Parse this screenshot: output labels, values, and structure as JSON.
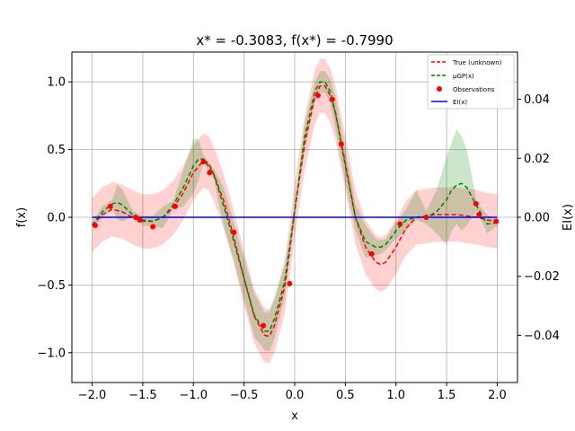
{
  "chart_data": {
    "type": "line",
    "title": "x* = -0.3083, f(x*) = -0.7990",
    "xlabel": "x",
    "ylabel": "f(x)",
    "ylabel_right": "EI(x)",
    "xlim": [
      -2.2,
      2.2
    ],
    "ylim": [
      -1.22,
      1.22
    ],
    "ylim_right": [
      -0.056,
      0.056
    ],
    "xticks": [
      -2.0,
      -1.5,
      -1.0,
      -0.5,
      0.0,
      0.5,
      1.0,
      1.5,
      2.0
    ],
    "xtick_labels": [
      "−2.0",
      "−1.5",
      "−1.0",
      "−0.5",
      "0.0",
      "0.5",
      "1.0",
      "1.5",
      "2.0"
    ],
    "yticks": [
      -1.0,
      -0.5,
      0.0,
      0.5,
      1.0
    ],
    "ytick_labels": [
      "−1.0",
      "−0.5",
      "0.0",
      "0.5",
      "1.0"
    ],
    "yticks_right": [
      -0.04,
      -0.02,
      0.0,
      0.02,
      0.04
    ],
    "ytick_right_labels": [
      "−0.04",
      "−0.02",
      "0.00",
      "0.02",
      "0.04"
    ],
    "grid": true,
    "legend_position": "top-right",
    "legend": [
      {
        "label": "True (unknown)",
        "color": "#ff0000",
        "style": "dashed"
      },
      {
        "label": "μGP(x)",
        "color": "#008000",
        "style": "dashed"
      },
      {
        "label": "Observations",
        "color": "#ff0000",
        "style": "dot"
      },
      {
        "label": "EI(x)",
        "color": "#0000ff",
        "style": "solid"
      }
    ],
    "series": [
      {
        "name": "True (unknown)",
        "color": "#ff0000",
        "x": [
          -2.0,
          -1.9,
          -1.8,
          -1.7,
          -1.6,
          -1.5,
          -1.4,
          -1.3,
          -1.2,
          -1.1,
          -1.0,
          -0.9,
          -0.85,
          -0.8,
          -0.7,
          -0.6,
          -0.5,
          -0.4,
          -0.3,
          -0.25,
          -0.2,
          -0.1,
          -0.05,
          0.0,
          0.1,
          0.2,
          0.25,
          0.3,
          0.35,
          0.4,
          0.5,
          0.6,
          0.7,
          0.8,
          0.85,
          0.9,
          1.0,
          1.1,
          1.2,
          1.3,
          1.4,
          1.5,
          1.6,
          1.7,
          1.8,
          1.9,
          2.0
        ],
        "y": [
          -0.06,
          0.02,
          0.06,
          0.04,
          0.0,
          -0.03,
          -0.03,
          0.0,
          0.07,
          0.18,
          0.33,
          0.42,
          0.4,
          0.32,
          0.12,
          -0.15,
          -0.45,
          -0.73,
          -0.87,
          -0.88,
          -0.8,
          -0.52,
          -0.25,
          0.05,
          0.55,
          0.89,
          0.97,
          0.97,
          0.9,
          0.78,
          0.4,
          0.0,
          -0.22,
          -0.33,
          -0.35,
          -0.33,
          -0.22,
          -0.08,
          0.0,
          0.01,
          0.02,
          0.02,
          0.02,
          0.01,
          0.0,
          -0.02,
          -0.03
        ]
      },
      {
        "name": "μGP(x)",
        "color": "#008000",
        "x": [
          -2.0,
          -1.9,
          -1.8,
          -1.75,
          -1.7,
          -1.6,
          -1.5,
          -1.4,
          -1.3,
          -1.2,
          -1.1,
          -1.0,
          -0.95,
          -0.9,
          -0.8,
          -0.7,
          -0.6,
          -0.5,
          -0.4,
          -0.3,
          -0.25,
          -0.2,
          -0.1,
          -0.05,
          0.0,
          0.1,
          0.2,
          0.25,
          0.3,
          0.35,
          0.4,
          0.5,
          0.6,
          0.7,
          0.8,
          0.85,
          0.9,
          1.0,
          1.1,
          1.2,
          1.3,
          1.4,
          1.5,
          1.55,
          1.6,
          1.65,
          1.7,
          1.8,
          1.9,
          2.0
        ],
        "y": [
          -0.06,
          0.04,
          0.1,
          0.11,
          0.09,
          0.02,
          -0.02,
          -0.03,
          0.0,
          0.09,
          0.22,
          0.38,
          0.43,
          0.43,
          0.32,
          0.08,
          -0.18,
          -0.45,
          -0.72,
          -0.84,
          -0.84,
          -0.75,
          -0.48,
          -0.22,
          0.05,
          0.6,
          0.93,
          1.0,
          1.0,
          0.93,
          0.78,
          0.38,
          0.0,
          -0.18,
          -0.22,
          -0.22,
          -0.2,
          -0.1,
          -0.02,
          0.0,
          0.0,
          0.04,
          0.13,
          0.2,
          0.24,
          0.25,
          0.22,
          0.08,
          -0.05,
          -0.04
        ]
      },
      {
        "name": "EI(x)",
        "color": "#0000ff",
        "axis": "right",
        "x": [
          -2.0,
          2.0
        ],
        "y": [
          0.0,
          0.0
        ]
      }
    ],
    "bands": [
      {
        "name": "True uncertainty",
        "color": "#ff0000",
        "opacity": 0.18,
        "x": [
          -2.0,
          -1.9,
          -1.8,
          -1.7,
          -1.6,
          -1.5,
          -1.4,
          -1.3,
          -1.2,
          -1.1,
          -1.0,
          -0.9,
          -0.85,
          -0.8,
          -0.7,
          -0.6,
          -0.5,
          -0.4,
          -0.3,
          -0.25,
          -0.2,
          -0.1,
          -0.05,
          0.0,
          0.1,
          0.2,
          0.25,
          0.3,
          0.35,
          0.4,
          0.5,
          0.6,
          0.7,
          0.8,
          0.85,
          0.9,
          1.0,
          1.1,
          1.2,
          1.3,
          1.4,
          1.5,
          1.6,
          1.7,
          1.8,
          1.9,
          2.0
        ],
        "lower": [
          -0.26,
          -0.18,
          -0.14,
          -0.16,
          -0.2,
          -0.23,
          -0.23,
          -0.2,
          -0.13,
          -0.02,
          0.13,
          0.22,
          0.2,
          0.12,
          -0.08,
          -0.35,
          -0.65,
          -0.93,
          -1.07,
          -1.08,
          -1.0,
          -0.72,
          -0.45,
          -0.15,
          0.35,
          0.69,
          0.77,
          0.77,
          0.7,
          0.58,
          0.2,
          -0.2,
          -0.42,
          -0.53,
          -0.55,
          -0.53,
          -0.42,
          -0.28,
          -0.2,
          -0.19,
          -0.18,
          -0.18,
          -0.18,
          -0.19,
          -0.2,
          -0.22,
          -0.23
        ],
        "upper": [
          0.14,
          0.22,
          0.26,
          0.24,
          0.2,
          0.17,
          0.17,
          0.2,
          0.27,
          0.38,
          0.53,
          0.62,
          0.6,
          0.52,
          0.32,
          0.05,
          -0.25,
          -0.53,
          -0.67,
          -0.68,
          -0.6,
          -0.32,
          -0.05,
          0.25,
          0.75,
          1.09,
          1.17,
          1.17,
          1.1,
          0.98,
          0.6,
          0.2,
          -0.02,
          -0.13,
          -0.15,
          -0.13,
          -0.02,
          0.12,
          0.2,
          0.21,
          0.22,
          0.22,
          0.22,
          0.21,
          0.2,
          0.18,
          0.17
        ]
      },
      {
        "name": "GP uncertainty",
        "color": "#008000",
        "opacity": 0.2,
        "x": [
          -2.0,
          -1.9,
          -1.8,
          -1.75,
          -1.7,
          -1.6,
          -1.5,
          -1.4,
          -1.3,
          -1.2,
          -1.1,
          -1.0,
          -0.95,
          -0.9,
          -0.8,
          -0.7,
          -0.6,
          -0.5,
          -0.4,
          -0.3,
          -0.25,
          -0.2,
          -0.1,
          -0.05,
          0.0,
          0.1,
          0.2,
          0.25,
          0.3,
          0.35,
          0.4,
          0.5,
          0.6,
          0.7,
          0.8,
          0.85,
          0.9,
          1.0,
          1.1,
          1.2,
          1.3,
          1.4,
          1.5,
          1.55,
          1.6,
          1.65,
          1.7,
          1.8,
          1.9,
          2.0
        ],
        "lower": [
          -0.08,
          -0.01,
          0.07,
          -0.02,
          -0.03,
          0.0,
          -0.06,
          -0.07,
          -0.08,
          0.06,
          0.08,
          0.18,
          0.27,
          0.4,
          0.28,
          -0.07,
          -0.32,
          -0.6,
          -0.88,
          -0.98,
          -0.99,
          -0.9,
          -0.6,
          -0.3,
          0.02,
          0.5,
          0.86,
          0.92,
          0.92,
          0.84,
          0.66,
          0.25,
          -0.1,
          -0.3,
          -0.28,
          -0.27,
          -0.24,
          -0.16,
          -0.1,
          -0.02,
          -0.05,
          -0.12,
          -0.2,
          -0.1,
          -0.05,
          -0.1,
          -0.06,
          0.05,
          -0.12,
          -0.06
        ],
        "upper": [
          -0.04,
          0.08,
          0.13,
          0.24,
          0.2,
          0.05,
          0.01,
          0.01,
          0.08,
          0.12,
          0.35,
          0.58,
          0.58,
          0.46,
          0.36,
          0.22,
          -0.04,
          -0.3,
          -0.56,
          -0.7,
          -0.7,
          -0.6,
          -0.36,
          -0.14,
          0.08,
          0.7,
          1.0,
          1.08,
          1.08,
          1.02,
          0.9,
          0.5,
          0.1,
          -0.06,
          -0.16,
          -0.17,
          -0.16,
          -0.04,
          0.06,
          0.2,
          0.05,
          0.2,
          0.45,
          0.55,
          0.65,
          0.6,
          0.5,
          0.11,
          0.02,
          -0.02
        ]
      }
    ],
    "observations": {
      "name": "Observations",
      "color": "#ff0000",
      "x": [
        -1.97,
        -1.82,
        -1.57,
        -1.53,
        -1.4,
        -1.18,
        -0.9,
        -0.84,
        -0.6,
        -0.31,
        -0.05,
        0.23,
        0.37,
        0.46,
        0.76,
        1.04,
        1.3,
        1.79,
        1.82,
        1.99
      ],
      "y": [
        -0.06,
        0.08,
        0.0,
        -0.02,
        -0.07,
        0.08,
        0.41,
        0.33,
        -0.11,
        -0.8,
        -0.49,
        0.9,
        0.87,
        0.54,
        -0.27,
        -0.05,
        0.0,
        0.1,
        0.02,
        -0.03
      ]
    }
  }
}
